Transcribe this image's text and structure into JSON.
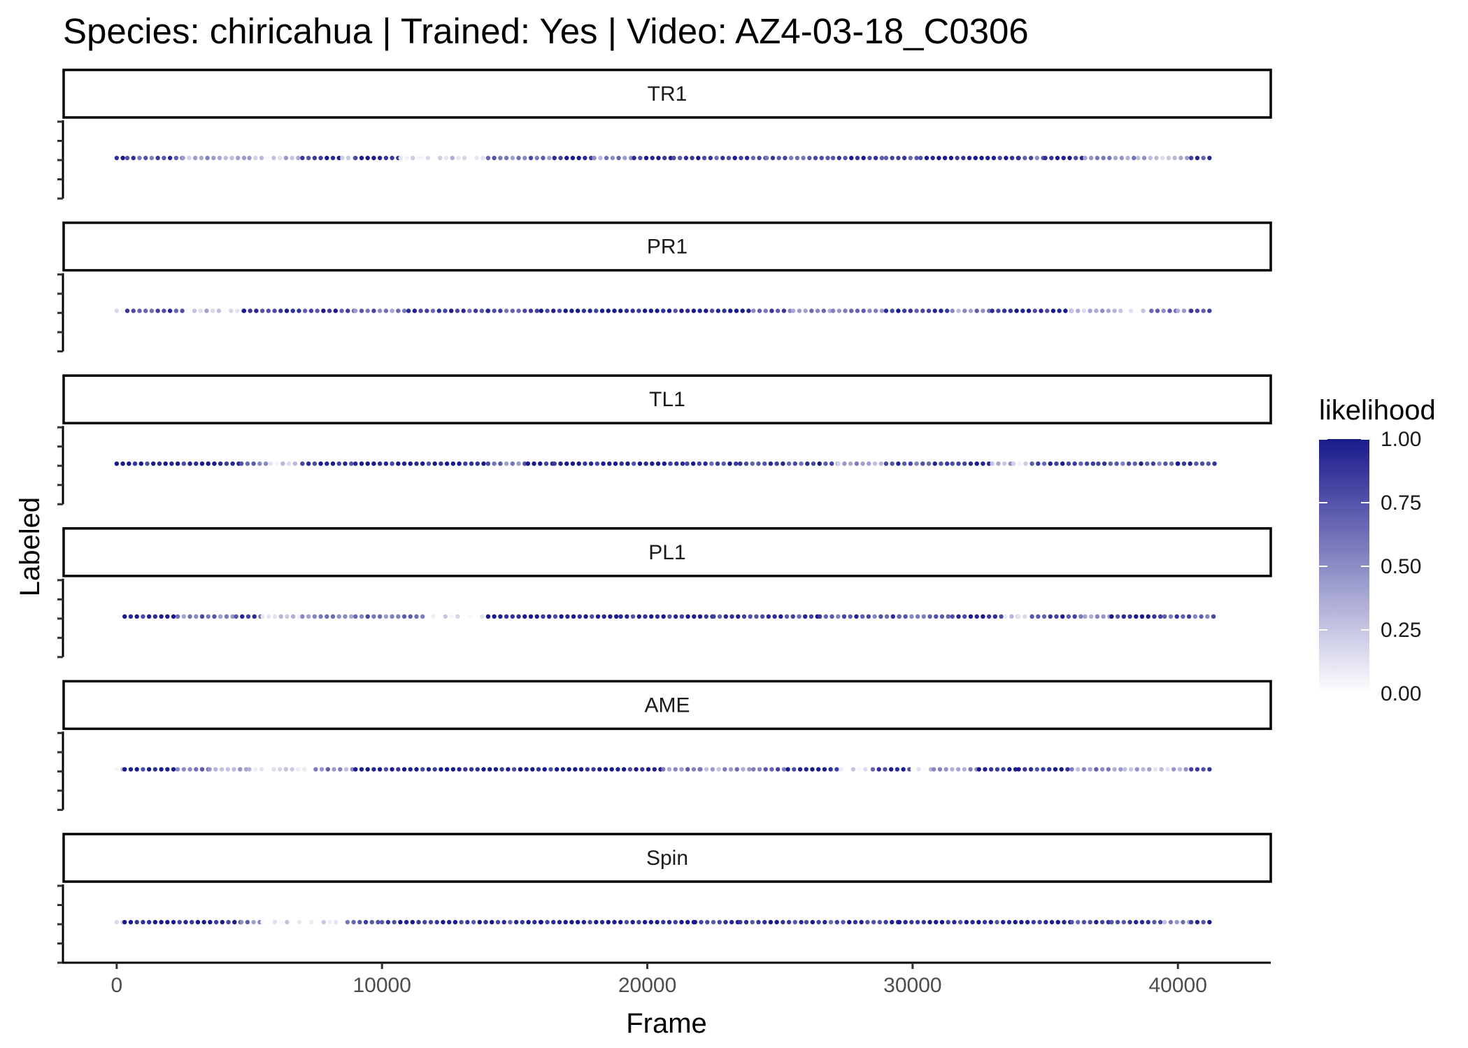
{
  "chart_data": {
    "type": "scatter",
    "title": "Species: chiricahua | Trained: Yes | Video: AZ4-03-18_C0306",
    "xlabel": "Frame",
    "ylabel": "Labeled",
    "xlim": [
      -2000,
      43500
    ],
    "x_ticks": [
      0,
      10000,
      20000,
      30000,
      40000
    ],
    "x_tick_labels": [
      "0",
      "10000",
      "20000",
      "30000",
      "40000"
    ],
    "color_scale": {
      "name": "likelihood",
      "low": "#ffffff",
      "high": "#1a1a8c",
      "domain": [
        0,
        1
      ],
      "ticks": [
        1.0,
        0.75,
        0.5,
        0.25,
        0.0
      ],
      "tick_labels": [
        "1.00",
        "0.75",
        "0.50",
        "0.25",
        "0.00"
      ]
    },
    "grid": false,
    "legend_position": "right",
    "panels": [
      {
        "label": "TR1",
        "segments": [
          [
            0,
            400,
            0.9
          ],
          [
            400,
            2500,
            0.75
          ],
          [
            2500,
            5000,
            0.4
          ],
          [
            5000,
            7000,
            0.25
          ],
          [
            7000,
            8500,
            0.9
          ],
          [
            8500,
            9000,
            0.3
          ],
          [
            9000,
            10700,
            0.95
          ],
          [
            10700,
            11500,
            0.05
          ],
          [
            11500,
            14000,
            0.15
          ],
          [
            14000,
            16500,
            0.6
          ],
          [
            16500,
            18000,
            0.95
          ],
          [
            18000,
            19500,
            0.5
          ],
          [
            19500,
            21000,
            0.95
          ],
          [
            21000,
            24500,
            0.85
          ],
          [
            24500,
            27000,
            0.7
          ],
          [
            27000,
            29000,
            0.9
          ],
          [
            29000,
            30300,
            0.75
          ],
          [
            30300,
            34000,
            0.98
          ],
          [
            34000,
            35000,
            0.7
          ],
          [
            35000,
            36500,
            0.95
          ],
          [
            36500,
            38500,
            0.5
          ],
          [
            38500,
            40500,
            0.3
          ],
          [
            40500,
            41400,
            0.9
          ]
        ]
      },
      {
        "label": "PR1",
        "segments": [
          [
            0,
            400,
            0.05
          ],
          [
            400,
            2700,
            0.75
          ],
          [
            2700,
            4800,
            0.2
          ],
          [
            4800,
            9000,
            0.85
          ],
          [
            9000,
            11000,
            0.6
          ],
          [
            11000,
            14000,
            0.85
          ],
          [
            14000,
            16000,
            0.75
          ],
          [
            16000,
            24000,
            0.98
          ],
          [
            24000,
            25500,
            0.7
          ],
          [
            25500,
            27000,
            0.5
          ],
          [
            27000,
            29000,
            0.6
          ],
          [
            29000,
            31500,
            0.85
          ],
          [
            31500,
            33000,
            0.5
          ],
          [
            33000,
            36000,
            0.95
          ],
          [
            36000,
            38000,
            0.35
          ],
          [
            38000,
            39000,
            0.05
          ],
          [
            39000,
            40000,
            0.7
          ],
          [
            40000,
            40500,
            0.3
          ],
          [
            40500,
            41400,
            0.85
          ]
        ]
      },
      {
        "label": "TL1",
        "segments": [
          [
            0,
            4700,
            0.98
          ],
          [
            4700,
            5800,
            0.6
          ],
          [
            5800,
            7000,
            0.15
          ],
          [
            7000,
            9000,
            0.95
          ],
          [
            9000,
            14000,
            0.98
          ],
          [
            14000,
            15500,
            0.6
          ],
          [
            15500,
            16500,
            0.95
          ],
          [
            16500,
            21500,
            0.98
          ],
          [
            21500,
            23500,
            0.85
          ],
          [
            23500,
            27200,
            0.8
          ],
          [
            27200,
            29000,
            0.4
          ],
          [
            29000,
            31500,
            0.75
          ],
          [
            31500,
            33000,
            0.9
          ],
          [
            33000,
            33800,
            0.4
          ],
          [
            33800,
            34500,
            0.05
          ],
          [
            34500,
            37000,
            0.85
          ],
          [
            37000,
            40000,
            0.75
          ],
          [
            40000,
            41400,
            0.85
          ]
        ]
      },
      {
        "label": "PL1",
        "segments": [
          [
            300,
            2300,
            0.98
          ],
          [
            2300,
            4500,
            0.6
          ],
          [
            4500,
            5500,
            0.8
          ],
          [
            5500,
            7000,
            0.2
          ],
          [
            7000,
            9000,
            0.55
          ],
          [
            9000,
            11700,
            0.6
          ],
          [
            11700,
            14000,
            0.05
          ],
          [
            14000,
            19000,
            0.98
          ],
          [
            19000,
            22500,
            0.95
          ],
          [
            22500,
            26500,
            0.85
          ],
          [
            26500,
            29500,
            0.75
          ],
          [
            29500,
            31500,
            0.65
          ],
          [
            31500,
            33500,
            0.95
          ],
          [
            33500,
            34000,
            0.2
          ],
          [
            34000,
            34500,
            0.05
          ],
          [
            34500,
            36500,
            0.8
          ],
          [
            36500,
            37500,
            0.4
          ],
          [
            37500,
            39500,
            0.95
          ],
          [
            39500,
            41400,
            0.7
          ]
        ]
      },
      {
        "label": "AME",
        "segments": [
          [
            0,
            300,
            0.1
          ],
          [
            300,
            2300,
            0.98
          ],
          [
            2300,
            3500,
            0.6
          ],
          [
            3500,
            5000,
            0.35
          ],
          [
            5000,
            7500,
            0.15
          ],
          [
            7500,
            9000,
            0.5
          ],
          [
            9000,
            20600,
            0.98
          ],
          [
            20600,
            22000,
            0.55
          ],
          [
            22000,
            24000,
            0.45
          ],
          [
            24000,
            25300,
            0.65
          ],
          [
            25300,
            27300,
            0.98
          ],
          [
            27300,
            28500,
            0.05
          ],
          [
            28500,
            30000,
            0.9
          ],
          [
            30000,
            30800,
            0.15
          ],
          [
            30800,
            32500,
            0.45
          ],
          [
            32500,
            34000,
            0.95
          ],
          [
            34000,
            36000,
            0.9
          ],
          [
            36000,
            38000,
            0.5
          ],
          [
            38000,
            40500,
            0.3
          ],
          [
            40500,
            41400,
            0.9
          ]
        ]
      },
      {
        "label": "Spin",
        "segments": [
          [
            0,
            300,
            0.1
          ],
          [
            300,
            4700,
            0.98
          ],
          [
            4700,
            5500,
            0.5
          ],
          [
            5500,
            8700,
            0.05
          ],
          [
            8700,
            10000,
            0.7
          ],
          [
            10000,
            16000,
            0.9
          ],
          [
            16000,
            21800,
            0.98
          ],
          [
            21800,
            23500,
            0.85
          ],
          [
            23500,
            26000,
            0.9
          ],
          [
            26000,
            29500,
            0.85
          ],
          [
            29500,
            36000,
            0.95
          ],
          [
            36000,
            37500,
            0.8
          ],
          [
            37500,
            39500,
            0.85
          ],
          [
            39500,
            40500,
            0.45
          ],
          [
            40500,
            41400,
            0.95
          ]
        ]
      }
    ]
  }
}
